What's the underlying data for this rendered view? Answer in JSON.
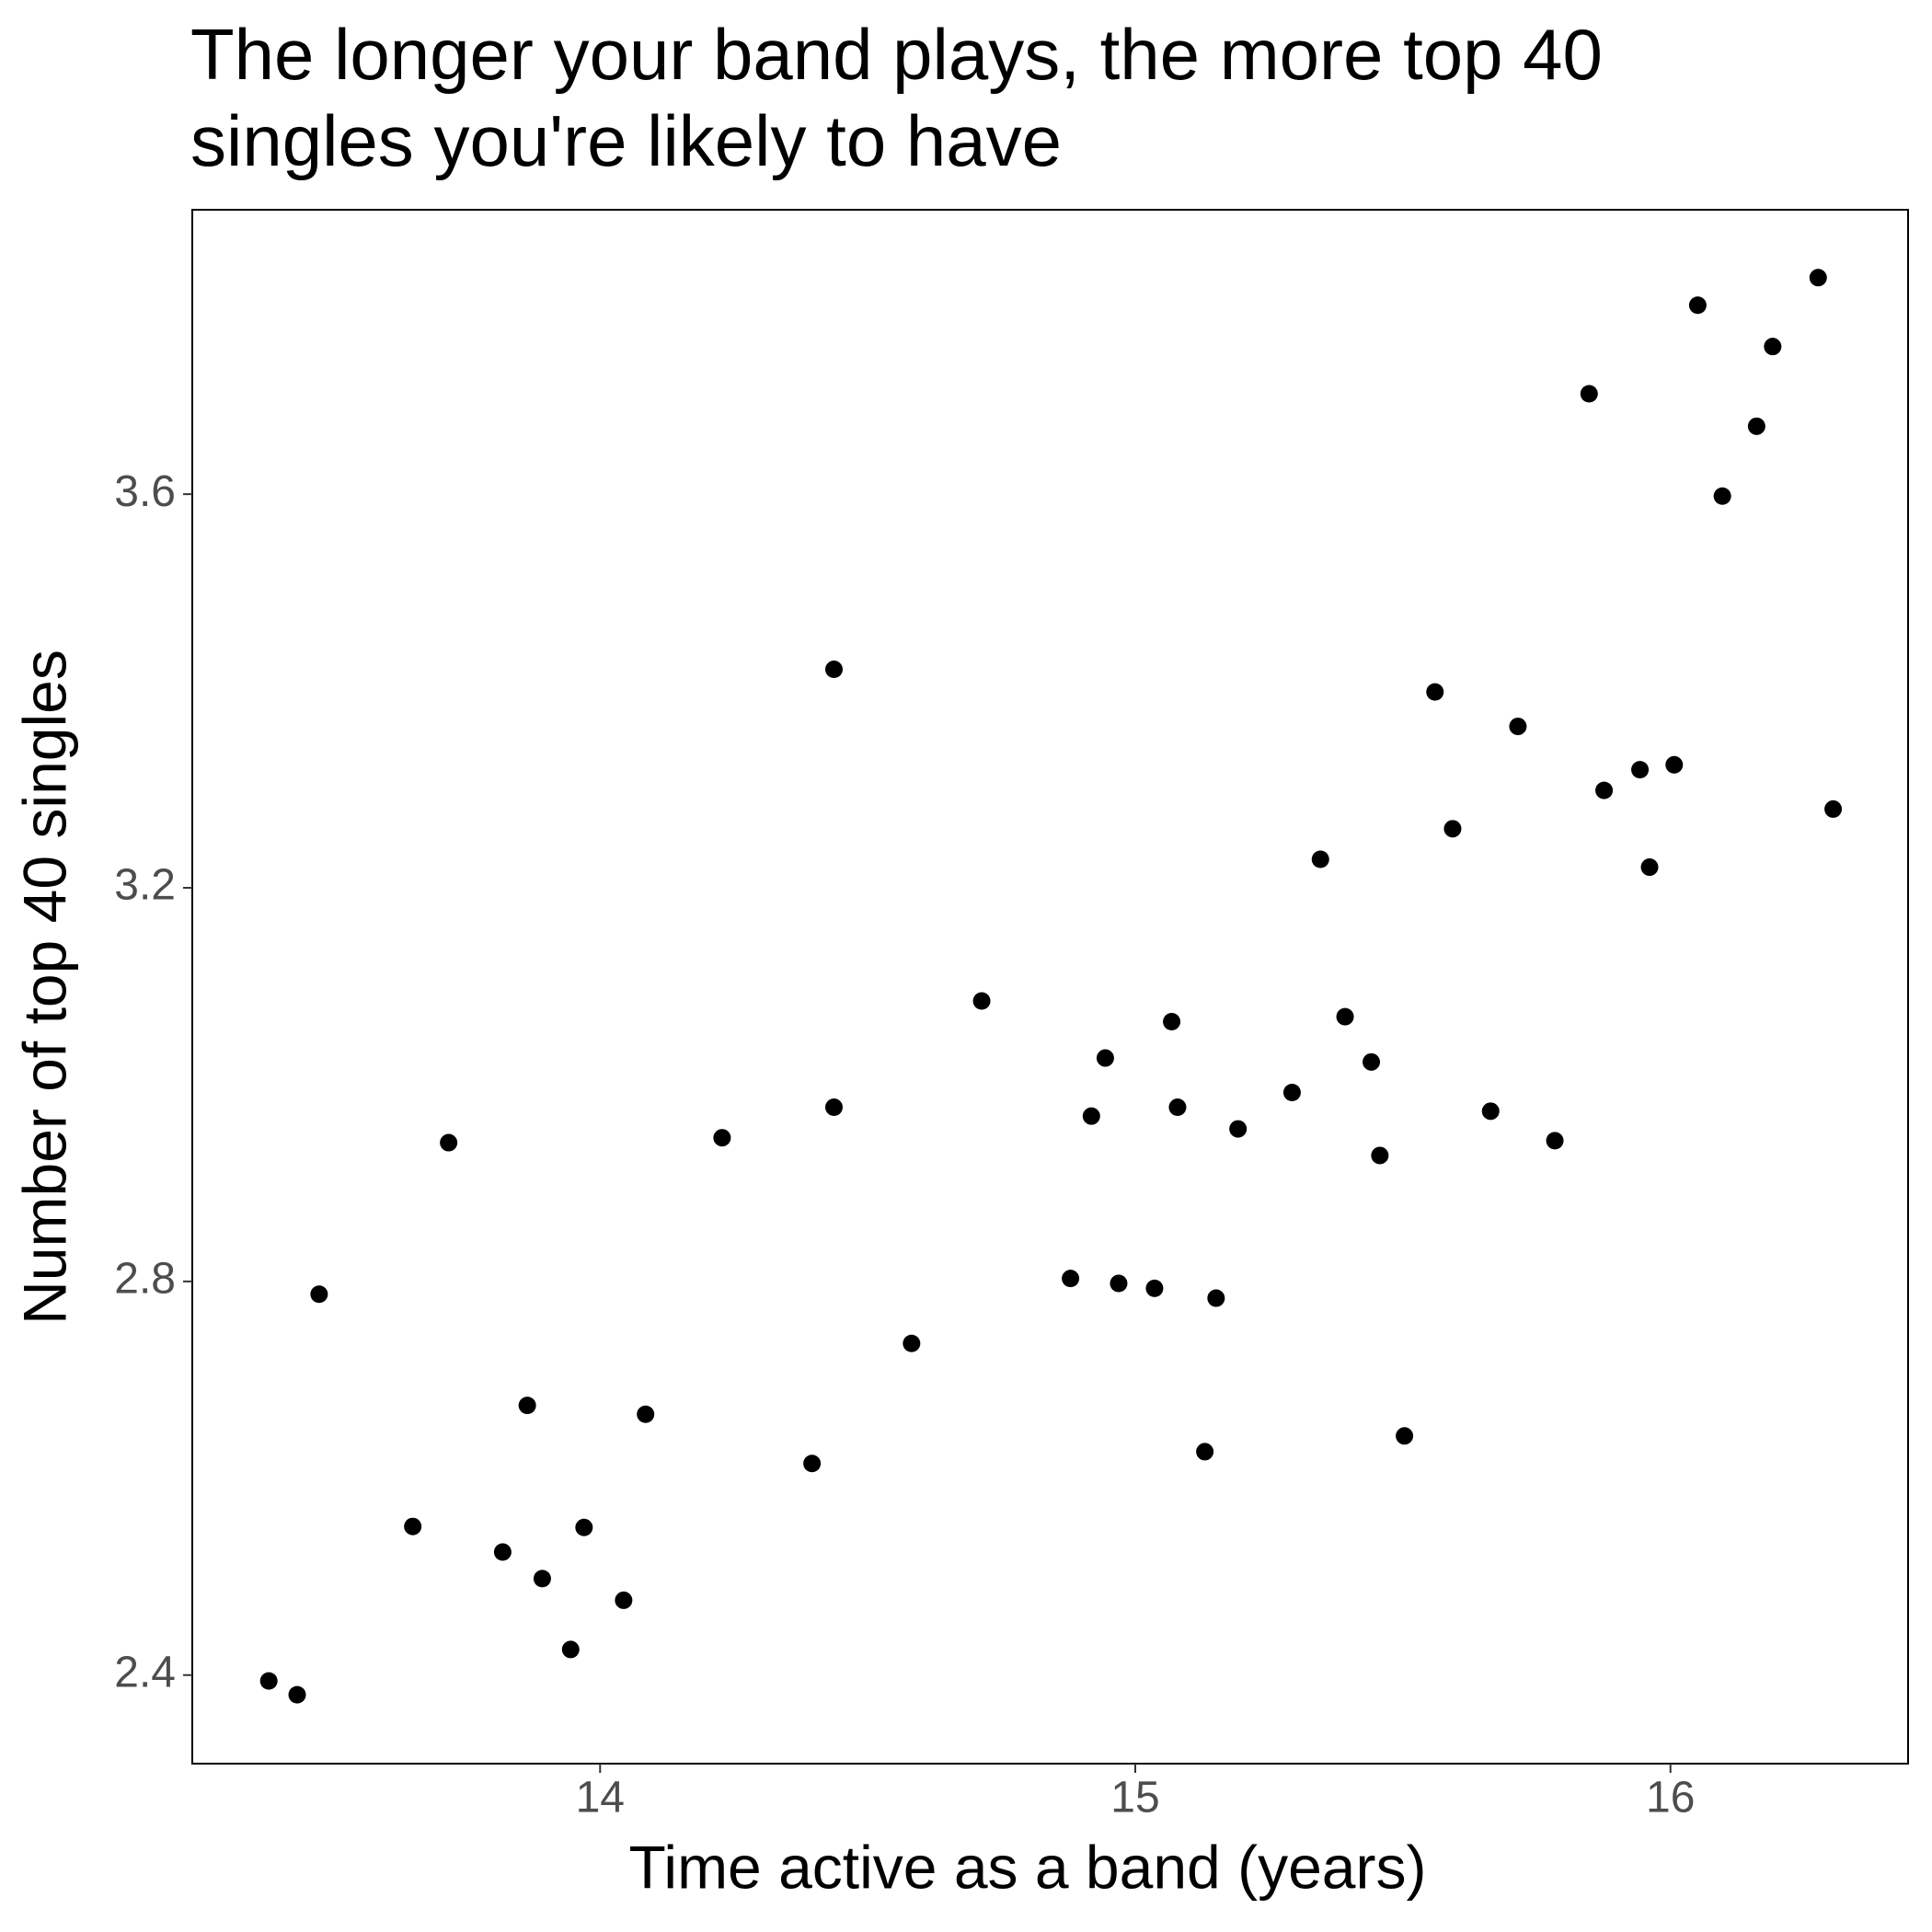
{
  "chart_data": {
    "type": "scatter",
    "title": "The longer your band plays, the more top 40 singles you're likely to have",
    "x_label": "Time active as a band (years)",
    "y_label": "Number of top 40 singles",
    "color": "#000000",
    "xlim": [
      13.238,
      16.444
    ],
    "xticks": [
      14,
      15,
      16
    ],
    "ylim": [
      2.31,
      3.889
    ],
    "yticks": [
      2.4,
      {
        "value": 2.8,
        "label": "2.8"
      },
      {
        "value": 3.2,
        "label": "3.2"
      },
      3.6
    ],
    "grid": false,
    "x": [
      13.381,
      13.434,
      13.475,
      13.65,
      13.717,
      13.818,
      13.864,
      13.892,
      13.945,
      13.97,
      14.044,
      14.085,
      14.228,
      14.396,
      14.437,
      14.437,
      14.582,
      14.713,
      14.879,
      14.918,
      14.944,
      14.969,
      15.036,
      15.068,
      15.079,
      15.13,
      15.151,
      15.192,
      15.293,
      15.346,
      15.392,
      15.441,
      15.457,
      15.503,
      15.56,
      15.593,
      15.664,
      15.715,
      15.784,
      15.848,
      15.876,
      15.943,
      15.961,
      16.007,
      16.051,
      16.097,
      16.161,
      16.191,
      16.276,
      16.304
    ],
    "values": [
      2.394,
      2.38,
      2.787,
      2.551,
      2.941,
      2.525,
      2.674,
      2.498,
      2.426,
      2.55,
      2.476,
      2.665,
      2.946,
      2.615,
      3.422,
      2.977,
      2.737,
      3.085,
      2.803,
      2.968,
      3.027,
      2.798,
      2.793,
      3.064,
      2.977,
      2.627,
      2.783,
      2.955,
      2.992,
      3.229,
      3.069,
      3.023,
      2.928,
      2.643,
      3.399,
      3.26,
      2.973,
      3.364,
      2.943,
      3.702,
      3.299,
      3.32,
      3.221,
      3.325,
      3.792,
      3.598,
      3.669,
      3.75,
      3.82,
      3.28
    ]
  }
}
